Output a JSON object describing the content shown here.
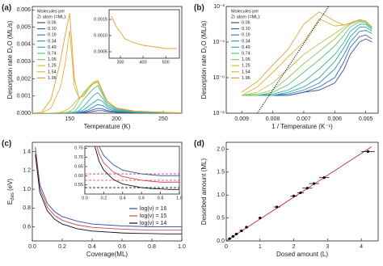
{
  "chart_data": [
    {
      "type": "line",
      "panel_label": "(a)",
      "xlabel": "Temperature (K)",
      "ylabel": "Desorption rate D₂O (ML/s)",
      "xlim": [
        110,
        270
      ],
      "xticks": [
        150,
        200,
        250
      ],
      "ylim": [
        0,
        0.0062
      ],
      "yticks": [
        {
          "value": 0,
          "label": "0.000"
        },
        0.001,
        0.002,
        0.003,
        0.004,
        0.005,
        0.006
      ],
      "legend_title": [
        "Molecules per",
        "Zr atom (=ML):"
      ],
      "x": [
        110,
        120,
        130,
        140,
        145,
        150,
        155,
        160,
        165,
        170,
        175,
        180,
        185,
        190,
        200,
        220,
        250,
        270
      ],
      "series": [
        {
          "name": "0.05",
          "color": "#3a4fa0",
          "values": [
            0,
            0,
            0,
            0,
            0,
            0,
            0,
            0,
            3e-05,
            6e-05,
            0.0001,
            0.00015,
            0.00015,
            0.0001,
            5e-05,
            2e-05,
            1e-05,
            0
          ]
        },
        {
          "name": "0.10",
          "color": "#3568b0",
          "values": [
            0,
            0,
            0,
            0,
            0,
            0,
            0,
            2e-05,
            6e-05,
            0.00012,
            0.0002,
            0.00028,
            0.00025,
            0.00016,
            7e-05,
            3e-05,
            1e-05,
            0
          ]
        },
        {
          "name": "0.19",
          "color": "#2f86b8",
          "values": [
            0,
            0,
            0,
            0,
            0,
            0,
            1e-05,
            4e-05,
            0.0001,
            0.0002,
            0.00035,
            0.0005,
            0.00045,
            0.00028,
            0.0001,
            4e-05,
            2e-05,
            0
          ]
        },
        {
          "name": "0.34",
          "color": "#2aa0b0",
          "values": [
            0,
            0,
            0,
            0,
            0,
            0,
            2e-05,
            8e-05,
            0.0002,
            0.0004,
            0.0006,
            0.0008,
            0.0007,
            0.0004,
            0.00015,
            5e-05,
            2e-05,
            1e-05
          ]
        },
        {
          "name": "0.49",
          "color": "#38b39a",
          "values": [
            0,
            0,
            0,
            0,
            0,
            1e-05,
            4e-05,
            0.00015,
            0.0004,
            0.0007,
            0.001,
            0.0012,
            0.0009,
            0.0005,
            0.0002,
            7e-05,
            3e-05,
            1e-05
          ]
        },
        {
          "name": "0.74",
          "color": "#5cbf7e",
          "values": [
            0,
            0,
            0,
            0,
            1e-05,
            3e-05,
            0.0001,
            0.0004,
            0.0008,
            0.0011,
            0.0014,
            0.0016,
            0.0011,
            0.0006,
            0.00025,
            0.0001,
            4e-05,
            2e-05
          ]
        },
        {
          "name": "1.05",
          "color": "#8cc862",
          "values": [
            0,
            0,
            0,
            2e-05,
            5e-05,
            0.0001,
            0.0003,
            0.0008,
            0.0012,
            0.0015,
            0.0017,
            0.0018,
            0.0012,
            0.0007,
            0.0003,
            0.00012,
            5e-05,
            2e-05
          ]
        },
        {
          "name": "1.25",
          "color": "#b8c94a",
          "values": [
            0,
            0,
            0,
            5e-05,
            0.00015,
            0.0003,
            0.0006,
            0.0009,
            0.0011,
            0.0015,
            0.0018,
            0.0019,
            0.0013,
            0.0007,
            0.0003,
            0.00012,
            5e-05,
            2e-05
          ]
        },
        {
          "name": "1.54",
          "color": "#e0b53a",
          "values": [
            0,
            0,
            0.0003,
            0.0015,
            0.0028,
            0.0048,
            0.0015,
            0.0009,
            0.001,
            0.0014,
            0.0017,
            0.0019,
            0.0013,
            0.0007,
            0.0003,
            0.00012,
            5e-05,
            2e-05
          ]
        },
        {
          "name": "1.96",
          "color": "#e8a030",
          "values": [
            0,
            5e-05,
            0.0008,
            0.003,
            0.0045,
            0.0058,
            0.002,
            0.0009,
            0.001,
            0.0014,
            0.0017,
            0.0019,
            0.0013,
            0.0007,
            0.0003,
            0.00012,
            5e-05,
            2e-05
          ]
        }
      ],
      "inset": {
        "xlim": [
          250,
          560
        ],
        "xticks": [
          300,
          400,
          500
        ],
        "ylim": [
          0.0003,
          0.0018
        ],
        "yticks": [
          0.0005,
          {
            "value": 0.001,
            "label": "0.0010"
          },
          0.0015
        ],
        "x": [
          260,
          280,
          300,
          320,
          350,
          400,
          450,
          500,
          550
        ],
        "series": [
          {
            "color": "#e8a030",
            "values": [
              0.0016,
              0.0013,
              0.0011,
              0.0009,
              0.0008,
              0.0007,
              0.00065,
              0.0006,
              0.0006
            ]
          }
        ]
      }
    },
    {
      "type": "line",
      "panel_label": "(b)",
      "xlabel": "1 / Temperature (K⁻¹)",
      "ylabel": "Desorption rate D₂O (ML/s)",
      "log_y": true,
      "xlim": [
        0.0095,
        0.0046
      ],
      "xticks": [
        0.009,
        0.008,
        0.007,
        0.006,
        0.005
      ],
      "ylim": [
        1e-08,
        0.01
      ],
      "yticks": [
        {
          "value": 1e-08,
          "label": "10⁻⁸"
        },
        {
          "value": 1e-06,
          "label": "10⁻⁶"
        },
        {
          "value": 0.0001,
          "label": "10⁻⁴"
        },
        {
          "value": 0.01,
          "label": "10⁻²"
        }
      ],
      "legend_title": [
        "Molecules per",
        "Zr atom (=ML):"
      ],
      "x": [
        0.009,
        0.0085,
        0.008,
        0.0075,
        0.007,
        0.0065,
        0.006,
        0.0057,
        0.0055,
        0.0052,
        0.005,
        0.0048
      ],
      "series": [
        {
          "name": "0.05",
          "color": "#3a4fa0",
          "values": [
            1e-07,
            1e-07,
            1e-07,
            1e-07,
            1.5e-07,
            2e-07,
            5e-07,
            3e-06,
            2e-05,
            0.0001,
            0.00015,
            0.0001
          ]
        },
        {
          "name": "0.10",
          "color": "#3568b0",
          "values": [
            1e-07,
            1e-07,
            1e-07,
            1e-07,
            1.5e-07,
            3e-07,
            1e-06,
            8e-06,
            5e-05,
            0.0002,
            0.00025,
            0.00015
          ]
        },
        {
          "name": "0.19",
          "color": "#2f86b8",
          "values": [
            1e-07,
            1e-07,
            1e-07,
            1.2e-07,
            2e-07,
            5e-07,
            3e-06,
            2e-05,
            0.0001,
            0.0004,
            0.00045,
            0.0003
          ]
        },
        {
          "name": "0.34",
          "color": "#2aa0b0",
          "values": [
            1e-07,
            1e-07,
            1e-07,
            1.5e-07,
            3e-07,
            1e-06,
            8e-06,
            5e-05,
            0.0002,
            0.0007,
            0.0007,
            0.0004
          ]
        },
        {
          "name": "0.49",
          "color": "#38b39a",
          "values": [
            1e-07,
            1e-07,
            1.2e-07,
            2e-07,
            6e-07,
            3e-06,
            2e-05,
            0.0001,
            0.0004,
            0.001,
            0.001,
            0.0005
          ]
        },
        {
          "name": "0.74",
          "color": "#5cbf7e",
          "values": [
            1e-07,
            1e-07,
            1.5e-07,
            4e-07,
            2e-06,
            1e-05,
            6e-05,
            0.00025,
            0.0007,
            0.0014,
            0.0012,
            0.0006
          ]
        },
        {
          "name": "1.05",
          "color": "#8cc862",
          "values": [
            1e-07,
            1.2e-07,
            2e-07,
            1e-06,
            6e-06,
            3e-05,
            0.00015,
            0.0005,
            0.001,
            0.0016,
            0.0014,
            0.0007
          ]
        },
        {
          "name": "1.25",
          "color": "#b8c94a",
          "values": [
            1e-07,
            1.5e-07,
            5e-07,
            3e-06,
            2e-05,
            8e-05,
            0.0003,
            0.0007,
            0.0011,
            0.0018,
            0.0015,
            0.0007
          ]
        },
        {
          "name": "1.54",
          "color": "#e0b53a",
          "values": [
            1e-07,
            3e-07,
            2e-06,
            1.5e-05,
            0.0001,
            0.002,
            0.0008,
            0.0009,
            0.0012,
            0.0018,
            0.0015,
            0.0007
          ]
        },
        {
          "name": "1.96",
          "color": "#e8a030",
          "values": [
            1.5e-07,
            6e-07,
            5e-06,
            4e-05,
            0.001,
            0.005,
            0.0015,
            0.0009,
            0.0012,
            0.0018,
            0.0015,
            0.0007
          ]
        },
        {
          "color": "#000000",
          "line_style": "dotted",
          "x": [
            0.0085,
            0.0062
          ],
          "values": [
            1e-08,
            0.01
          ]
        }
      ]
    },
    {
      "type": "line",
      "panel_label": "(c)",
      "xlabel": "Coverage(ML)",
      "ylabel": "E",
      "ylabel_sub": "des",
      "ylabel_unit": "(eV)",
      "xlim": [
        0,
        1
      ],
      "xticks": [
        {
          "value": 0,
          "label": "0.0"
        },
        0.2,
        0.4,
        0.6,
        0.8,
        {
          "value": 1,
          "label": "1.0"
        }
      ],
      "ylim": [
        0.45,
        1.5
      ],
      "yticks": [
        0.6,
        0.8,
        {
          "value": 1,
          "label": "1.0"
        },
        1.2,
        1.4
      ],
      "x": [
        0.02,
        0.05,
        0.1,
        0.15,
        0.2,
        0.3,
        0.4,
        0.5,
        0.6,
        0.7,
        0.8,
        0.9,
        1.0
      ],
      "series": [
        {
          "name": "log(ν) = 16",
          "color": "#2b4fa8",
          "values": [
            1.45,
            1.05,
            0.85,
            0.76,
            0.71,
            0.66,
            0.63,
            0.62,
            0.61,
            0.605,
            0.6,
            0.6,
            0.6
          ]
        },
        {
          "name": "log(ν) = 15",
          "color": "#d0454f",
          "values": [
            1.41,
            1.01,
            0.81,
            0.72,
            0.67,
            0.62,
            0.595,
            0.585,
            0.575,
            0.57,
            0.565,
            0.565,
            0.565
          ]
        },
        {
          "name": "log(ν) = 14",
          "color": "#111111",
          "values": [
            1.37,
            0.97,
            0.77,
            0.68,
            0.63,
            0.58,
            0.555,
            0.545,
            0.535,
            0.53,
            0.528,
            0.525,
            0.525
          ]
        }
      ],
      "inset": {
        "xlim": [
          0,
          1
        ],
        "xticks": [
          {
            "value": 0,
            "label": "0.0"
          },
          0.2,
          0.4,
          0.6,
          0.8,
          {
            "value": 1,
            "label": "1.0"
          }
        ],
        "ylim": [
          0.5,
          0.76
        ],
        "yticks": [
          0.55,
          {
            "value": 0.6,
            "label": "0.60"
          },
          0.65,
          {
            "value": 0.7,
            "label": "0.70"
          },
          0.75
        ],
        "hlines": [
          {
            "value": 0.61,
            "color": "#d0454f"
          },
          {
            "value": 0.575,
            "color": "#d0454f"
          },
          {
            "value": 0.535,
            "color": "#111111"
          }
        ]
      }
    },
    {
      "type": "scatter",
      "panel_label": "(d)",
      "xlabel": "Dosed amount (L)",
      "ylabel": "Desorbed amount (ML)",
      "xlim": [
        0,
        4.5
      ],
      "xticks": [
        0,
        1,
        2,
        3,
        4
      ],
      "ylim": [
        0,
        2.15
      ],
      "yticks": [
        {
          "value": 0,
          "label": "0.0"
        },
        0.5,
        {
          "value": 1,
          "label": "1.0"
        },
        1.5,
        {
          "value": 2,
          "label": "2.0"
        }
      ],
      "color": "#000000",
      "x": [
        0.1,
        0.2,
        0.3,
        0.45,
        0.6,
        1.0,
        1.5,
        2.0,
        2.2,
        2.4,
        2.6,
        2.9,
        4.2
      ],
      "values": [
        0.05,
        0.1,
        0.15,
        0.22,
        0.3,
        0.5,
        0.74,
        0.98,
        1.05,
        1.15,
        1.25,
        1.38,
        1.95
      ],
      "xerr": [
        0.05,
        0.05,
        0.05,
        0.05,
        0.05,
        0.05,
        0.1,
        0.1,
        0.1,
        0.15,
        0.15,
        0.15,
        0.2
      ],
      "fit": {
        "color": "#c62828",
        "x": [
          0,
          4.3
        ],
        "values": [
          0,
          2.05
        ]
      }
    }
  ]
}
